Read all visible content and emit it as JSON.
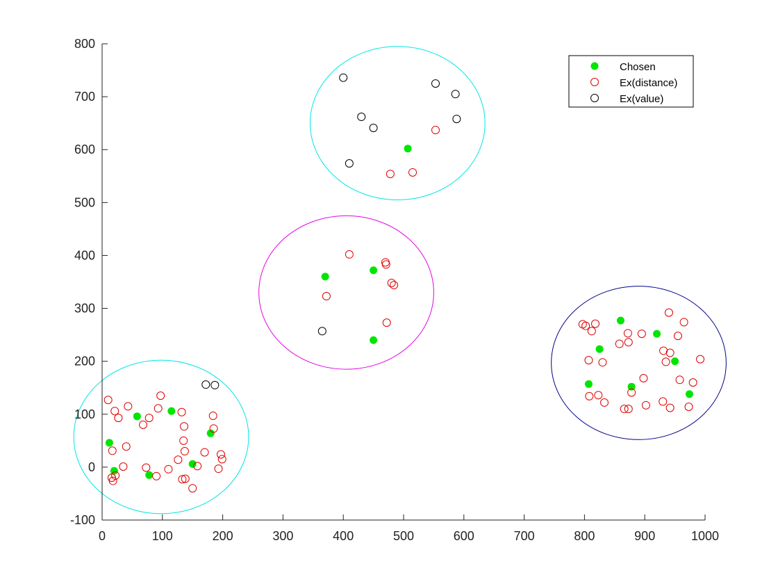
{
  "chart_data": {
    "type": "scatter",
    "title": "",
    "xlabel": "",
    "ylabel": "",
    "xlim": [
      0,
      1000
    ],
    "ylim": [
      -100,
      800
    ],
    "xticks": [
      "0",
      "100",
      "200",
      "300",
      "400",
      "500",
      "600",
      "700",
      "800",
      "900",
      "1000"
    ],
    "yticks": [
      "-100",
      "0",
      "100",
      "200",
      "300",
      "400",
      "500",
      "600",
      "700",
      "800"
    ],
    "xtick_values": [
      0,
      100,
      200,
      300,
      400,
      500,
      600,
      700,
      800,
      900,
      1000
    ],
    "ytick_values": [
      -100,
      0,
      100,
      200,
      300,
      400,
      500,
      600,
      700,
      800
    ],
    "grid": false,
    "legend_position": "top-right",
    "legend": [
      "Chosen",
      "Ex(distance)",
      "Ex(value)"
    ],
    "circles": [
      {
        "cx": 98,
        "cy": 57,
        "r": 145,
        "color": "#00e5e5"
      },
      {
        "cx": 405,
        "cy": 330,
        "r": 145,
        "color": "#e500e5"
      },
      {
        "cx": 490,
        "cy": 650,
        "r": 145,
        "color": "#00e5e5"
      },
      {
        "cx": 890,
        "cy": 197,
        "r": 145,
        "color": "#00008b"
      }
    ],
    "series": [
      {
        "name": "Chosen",
        "marker": "filled-circle",
        "color": "#00e600",
        "points": [
          [
            12,
            46
          ],
          [
            20,
            -7
          ],
          [
            58,
            96
          ],
          [
            78,
            -15
          ],
          [
            115,
            106
          ],
          [
            150,
            6
          ],
          [
            180,
            64
          ],
          [
            370,
            360
          ],
          [
            450,
            372
          ],
          [
            450,
            240
          ],
          [
            507,
            602
          ],
          [
            807,
            157
          ],
          [
            825,
            223
          ],
          [
            860,
            277
          ],
          [
            878,
            152
          ],
          [
            920,
            252
          ],
          [
            950,
            200
          ],
          [
            974,
            138
          ]
        ]
      },
      {
        "name": "Ex(distance)",
        "marker": "open-circle",
        "color": "#e00000",
        "points": [
          [
            10,
            127
          ],
          [
            17,
            31
          ],
          [
            16,
            -20
          ],
          [
            18,
            -26
          ],
          [
            21,
            106
          ],
          [
            22,
            -16
          ],
          [
            27,
            93
          ],
          [
            35,
            1
          ],
          [
            40,
            39
          ],
          [
            43,
            115
          ],
          [
            68,
            80
          ],
          [
            73,
            -1
          ],
          [
            78,
            93
          ],
          [
            90,
            -17
          ],
          [
            93,
            111
          ],
          [
            97,
            135
          ],
          [
            110,
            -4
          ],
          [
            126,
            14
          ],
          [
            132,
            104
          ],
          [
            133,
            -23
          ],
          [
            135,
            50
          ],
          [
            136,
            77
          ],
          [
            137,
            30
          ],
          [
            138,
            -22
          ],
          [
            150,
            -40
          ],
          [
            158,
            2
          ],
          [
            170,
            28
          ],
          [
            184,
            97
          ],
          [
            185,
            73
          ],
          [
            193,
            -3
          ],
          [
            197,
            24
          ],
          [
            199,
            15
          ],
          [
            372,
            323
          ],
          [
            410,
            402
          ],
          [
            470,
            387
          ],
          [
            471,
            383
          ],
          [
            472,
            273
          ],
          [
            480,
            348
          ],
          [
            484,
            344
          ],
          [
            478,
            554
          ],
          [
            515,
            557
          ],
          [
            553,
            637
          ],
          [
            797,
            270
          ],
          [
            802,
            267
          ],
          [
            807,
            202
          ],
          [
            808,
            134
          ],
          [
            812,
            257
          ],
          [
            818,
            271
          ],
          [
            823,
            136
          ],
          [
            830,
            198
          ],
          [
            833,
            122
          ],
          [
            858,
            233
          ],
          [
            866,
            110
          ],
          [
            872,
            253
          ],
          [
            873,
            110
          ],
          [
            873,
            236
          ],
          [
            878,
            141
          ],
          [
            895,
            252
          ],
          [
            898,
            168
          ],
          [
            902,
            117
          ],
          [
            930,
            124
          ],
          [
            931,
            220
          ],
          [
            935,
            199
          ],
          [
            940,
            292
          ],
          [
            942,
            216
          ],
          [
            942,
            112
          ],
          [
            955,
            248
          ],
          [
            958,
            165
          ],
          [
            965,
            274
          ],
          [
            973,
            114
          ],
          [
            980,
            160
          ],
          [
            992,
            204
          ]
        ]
      },
      {
        "name": "Ex(value)",
        "marker": "open-circle",
        "color": "#000000",
        "points": [
          [
            172,
            156
          ],
          [
            187,
            155
          ],
          [
            365,
            257
          ],
          [
            400,
            736
          ],
          [
            410,
            574
          ],
          [
            430,
            662
          ],
          [
            450,
            641
          ],
          [
            553,
            725
          ],
          [
            586,
            705
          ],
          [
            588,
            658
          ]
        ]
      }
    ]
  }
}
